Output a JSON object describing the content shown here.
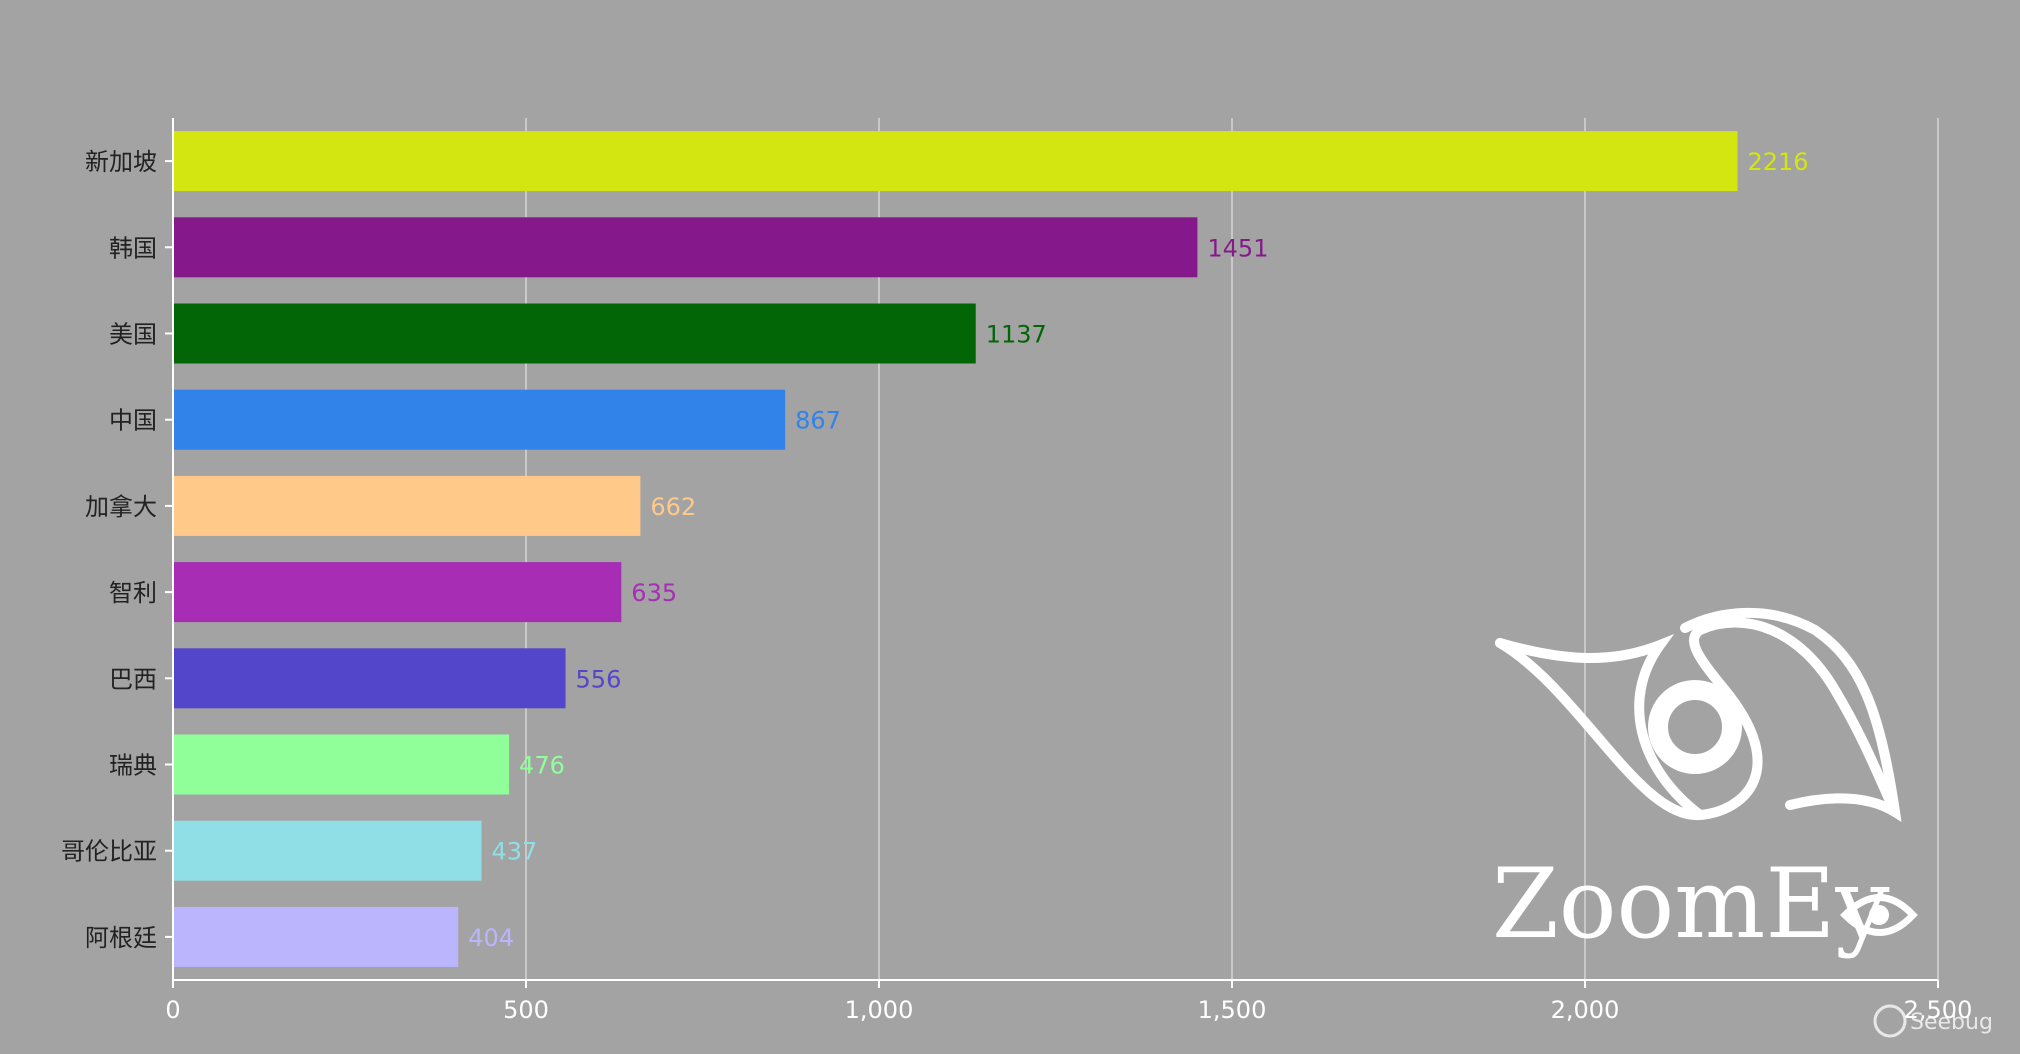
{
  "chart_data": {
    "type": "bar",
    "orientation": "horizontal",
    "categories": [
      "新加坡",
      "韩国",
      "美国",
      "中国",
      "加拿大",
      "智利",
      "巴西",
      "瑞典",
      "哥伦比亚",
      "阿根廷"
    ],
    "values": [
      2216,
      1451,
      1137,
      867,
      662,
      635,
      556,
      476,
      437,
      404
    ],
    "value_labels": [
      "2216",
      "1451",
      "1137",
      "867",
      "662",
      "635",
      "556",
      "476",
      "437",
      "404"
    ],
    "colors": [
      "#d4e612",
      "#85198c",
      "#026606",
      "#3183ea",
      "#ffc98a",
      "#a72db5",
      "#5346ca",
      "#91ff99",
      "#90dfe6",
      "#bbb5fd"
    ],
    "xlim": [
      0,
      2500
    ],
    "xticks": [
      0,
      500,
      1000,
      1500,
      2000,
      2500
    ],
    "xtick_labels": [
      "0",
      "500",
      "1,000",
      "1,500",
      "2,000",
      "2,500"
    ],
    "grid": true,
    "title": "",
    "xlabel": "",
    "ylabel": ""
  },
  "watermarks": {
    "zoomeye_text": "ZoomEy",
    "seebug_text": "Seebug"
  },
  "colors": {
    "background": "#a3a3a3",
    "axis": "#ffffff",
    "grid": "#d6d6d6",
    "category_label": "#222222",
    "logo": "#ffffff"
  }
}
